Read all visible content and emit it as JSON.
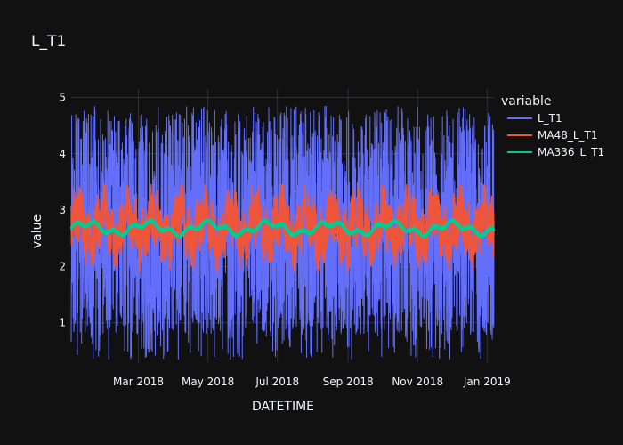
{
  "chart_data": {
    "type": "line",
    "title": "L_T1",
    "xlabel": "DATETIME",
    "ylabel": "value",
    "x_range": [
      "2018-01-01",
      "2019-01-07"
    ],
    "ylim": [
      0.3,
      5.15
    ],
    "yticks": [
      1,
      2,
      3,
      4,
      5
    ],
    "xticks": [
      {
        "date": "2018-03-01",
        "label": "Mar 2018"
      },
      {
        "date": "2018-05-01",
        "label": "May 2018"
      },
      {
        "date": "2018-07-01",
        "label": "Jul 2018"
      },
      {
        "date": "2018-09-01",
        "label": "Sep 2018"
      },
      {
        "date": "2018-11-01",
        "label": "Nov 2018"
      },
      {
        "date": "2019-01-01",
        "label": "Jan 2019"
      }
    ],
    "grid": true,
    "legend": {
      "title": "variable",
      "placement": "right"
    },
    "background": "#111111",
    "series": [
      {
        "name": "L_T1",
        "color": "#636efa",
        "min": 0.35,
        "max": 4.85,
        "typical_low": 0.8,
        "typical_high": 4.5
      },
      {
        "name": "MA48_L_T1",
        "color": "#ef553b",
        "min": 1.75,
        "max": 3.45,
        "mean": 2.7
      },
      {
        "name": "MA336_L_T1",
        "color": "#00cc96",
        "min": 2.35,
        "max": 2.9,
        "mean": 2.68
      }
    ]
  }
}
